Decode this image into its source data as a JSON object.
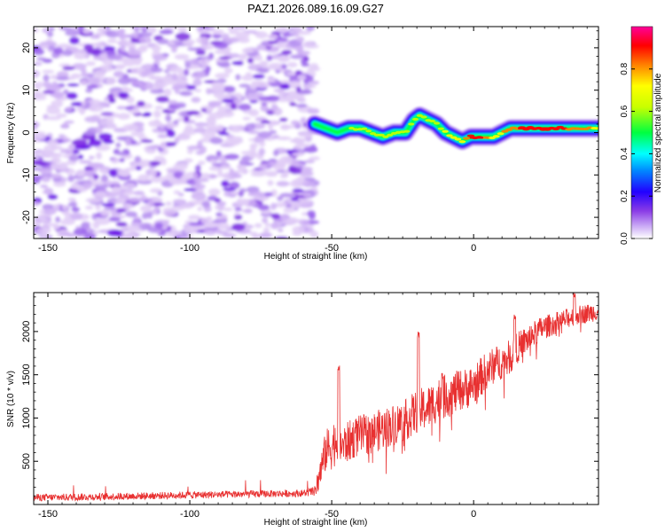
{
  "chart_data": [
    {
      "type": "heatmap",
      "title": "PAZ1.2026.089.16.09.G27",
      "xlabel": "Height of straight line (km)",
      "ylabel": "Frequency (Hz)",
      "xlim": [
        -155,
        44
      ],
      "ylim": [
        -25,
        25
      ],
      "x_ticks": [
        -150,
        -100,
        -50,
        0
      ],
      "y_ticks": [
        -20,
        -10,
        0,
        10,
        20
      ],
      "noise_region_x": [
        -155,
        -56
      ],
      "signal_region_x": [
        -56,
        44
      ],
      "ridge": {
        "x": [
          -56,
          -52,
          -48,
          -44,
          -40,
          -36,
          -32,
          -28,
          -24,
          -21,
          -19,
          -16,
          -13,
          -10,
          -7,
          -4,
          -1,
          3,
          7,
          10,
          13,
          16,
          20,
          26,
          32,
          38,
          44
        ],
        "y": [
          2,
          1,
          0,
          1,
          1,
          0,
          -1,
          0,
          0,
          3,
          4,
          3,
          2,
          0,
          -1,
          -2,
          -1,
          -1,
          -1,
          0,
          1,
          1,
          1,
          1,
          1,
          1,
          1
        ],
        "amplitude": [
          0.3,
          0.35,
          0.4,
          0.45,
          0.45,
          0.5,
          0.55,
          0.5,
          0.5,
          0.55,
          0.55,
          0.5,
          0.5,
          0.6,
          0.65,
          0.7,
          0.9,
          0.85,
          0.7,
          0.75,
          0.8,
          0.85,
          0.9,
          0.9,
          0.85,
          0.8,
          0.7
        ]
      },
      "colorbar": {
        "label": "Normalized spectral amplitude",
        "range": [
          0,
          1
        ],
        "ticks": [
          "0.0",
          "0.2",
          "0.4",
          "0.6",
          "0.8"
        ],
        "tick_values": [
          0.0,
          0.2,
          0.4,
          0.6,
          0.8
        ]
      },
      "colors": [
        "#ffffff",
        "#e0cdf7",
        "#b48ef0",
        "#7a2be0",
        "#2200ff",
        "#00c8ff",
        "#00ff40",
        "#ffff00",
        "#ff8000",
        "#ff0000",
        "#ff0099"
      ]
    },
    {
      "type": "line",
      "xlabel": "Height of straight line (km)",
      "ylabel": "SNR (10 * v/v)",
      "xlim": [
        -155,
        44
      ],
      "ylim": [
        0,
        2450
      ],
      "x_ticks": [
        -150,
        -100,
        -50,
        0
      ],
      "y_ticks": [
        500,
        1000,
        1500,
        2000
      ],
      "series": [
        {
          "name": "SNR",
          "color": "#e83030",
          "x": [
            -155,
            -130,
            -100,
            -80,
            -60,
            -56,
            -54,
            -52,
            -50,
            -48,
            -46,
            -44,
            -42,
            -40,
            -36,
            -32,
            -28,
            -24,
            -20,
            -16,
            -12,
            -8,
            -4,
            0,
            4,
            8,
            12,
            16,
            20,
            24,
            28,
            32,
            36,
            40,
            44
          ],
          "base": [
            80,
            90,
            110,
            120,
            130,
            150,
            400,
            650,
            700,
            800,
            700,
            750,
            800,
            820,
            850,
            900,
            950,
            1000,
            1100,
            1150,
            1250,
            1300,
            1350,
            1400,
            1550,
            1650,
            1700,
            1850,
            1950,
            2050,
            2100,
            2150,
            2200,
            2220,
            2250
          ],
          "noise": [
            70,
            70,
            70,
            70,
            70,
            90,
            250,
            300,
            350,
            350,
            300,
            300,
            300,
            300,
            300,
            300,
            300,
            300,
            320,
            320,
            320,
            320,
            300,
            300,
            280,
            260,
            260,
            220,
            200,
            180,
            160,
            150,
            140,
            140,
            140
          ],
          "peaks": [
            [
              -47.5,
              1620
            ],
            [
              -19.5,
              2010
            ],
            [
              -11,
              1520
            ],
            [
              14.5,
              2200
            ],
            [
              35.5,
              2450
            ]
          ]
        }
      ]
    }
  ]
}
